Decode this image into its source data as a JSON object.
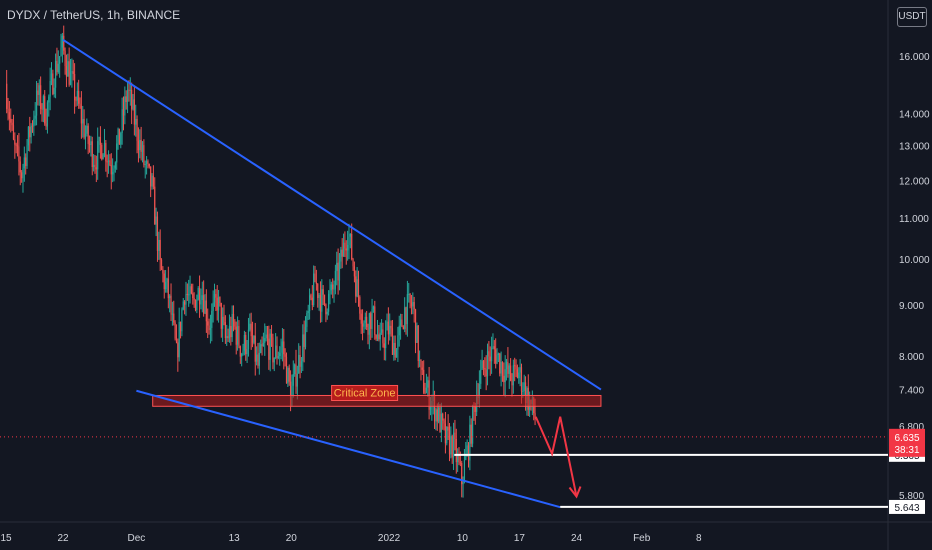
{
  "header": {
    "title": "DYDX / TetherUS, 1h, BINANCE",
    "currency_button": "USDT"
  },
  "colors": {
    "background": "#131722",
    "up": "#26a69a",
    "down": "#ef5350",
    "trendline": "#2962ff",
    "zone_fill": "#b71c1c",
    "zone_border": "#ff5252",
    "zone_text": "#ffb74d",
    "arrow": "#f23645",
    "target_line": "#ffffff",
    "price_label_current": "#f23645"
  },
  "chart_data": {
    "type": "candlestick",
    "symbol": "DYDX / TetherUS",
    "interval": "1h",
    "exchange": "BINANCE",
    "y_scale": "log",
    "ylim": [
      5.45,
      18.2
    ],
    "y_ticks": [
      "16.000",
      "14.000",
      "13.000",
      "12.000",
      "11.000",
      "10.000",
      "9.000",
      "8.000",
      "7.400",
      "6.800",
      "5.800"
    ],
    "x_ticks": [
      "15",
      "22",
      "Dec",
      "13",
      "20",
      "2022",
      "10",
      "17",
      "24",
      "Feb",
      "8"
    ],
    "price_path": [
      [
        "2021-11-15",
        15.0
      ],
      [
        "2021-11-16",
        13.0
      ],
      [
        "2021-11-17",
        12.2
      ],
      [
        "2021-11-18",
        13.4
      ],
      [
        "2021-11-19",
        14.6
      ],
      [
        "2021-11-20",
        14.0
      ],
      [
        "2021-11-21",
        15.4
      ],
      [
        "2021-11-22",
        16.3
      ],
      [
        "2021-11-23",
        15.2
      ],
      [
        "2021-11-24",
        14.2
      ],
      [
        "2021-11-25",
        13.2
      ],
      [
        "2021-11-26",
        12.6
      ],
      [
        "2021-11-27",
        13.1
      ],
      [
        "2021-11-28",
        12.4
      ],
      [
        "2021-11-29",
        13.2
      ],
      [
        "2021-11-30",
        14.8
      ],
      [
        "2021-12-01",
        13.6
      ],
      [
        "2021-12-02",
        12.5
      ],
      [
        "2021-12-03",
        11.8
      ],
      [
        "2021-12-04",
        9.8
      ],
      [
        "2021-12-05",
        9.2
      ],
      [
        "2021-12-06",
        8.0
      ],
      [
        "2021-12-07",
        9.3
      ],
      [
        "2021-12-08",
        9.0
      ],
      [
        "2021-12-09",
        9.4
      ],
      [
        "2021-12-10",
        8.6
      ],
      [
        "2021-12-11",
        9.1
      ],
      [
        "2021-12-12",
        8.3
      ],
      [
        "2021-12-13",
        8.6
      ],
      [
        "2021-12-14",
        8.1
      ],
      [
        "2021-12-15",
        8.4
      ],
      [
        "2021-12-16",
        7.8
      ],
      [
        "2021-12-17",
        8.3
      ],
      [
        "2021-12-18",
        8.0
      ],
      [
        "2021-12-19",
        8.2
      ],
      [
        "2021-12-20",
        7.3
      ],
      [
        "2021-12-21",
        7.9
      ],
      [
        "2021-12-22",
        8.6
      ],
      [
        "2021-12-23",
        9.5
      ],
      [
        "2021-12-24",
        9.0
      ],
      [
        "2021-12-25",
        9.2
      ],
      [
        "2021-12-26",
        9.8
      ],
      [
        "2021-12-27",
        10.7
      ],
      [
        "2021-12-28",
        9.5
      ],
      [
        "2021-12-29",
        8.6
      ],
      [
        "2021-12-30",
        8.8
      ],
      [
        "2021-12-31",
        8.2
      ],
      [
        "2022-01-01",
        8.5
      ],
      [
        "2022-01-02",
        8.1
      ],
      [
        "2022-01-03",
        8.9
      ],
      [
        "2022-01-04",
        9.0
      ],
      [
        "2022-01-05",
        7.6
      ],
      [
        "2022-01-06",
        7.3
      ],
      [
        "2022-01-07",
        7.0
      ],
      [
        "2022-01-08",
        6.6
      ],
      [
        "2022-01-09",
        6.5
      ],
      [
        "2022-01-10",
        6.0
      ],
      [
        "2022-01-11",
        6.6
      ],
      [
        "2022-01-12",
        7.5
      ],
      [
        "2022-01-13",
        7.9
      ],
      [
        "2022-01-14",
        8.1
      ],
      [
        "2022-01-15",
        7.8
      ],
      [
        "2022-01-16",
        7.6
      ],
      [
        "2022-01-17",
        7.7
      ],
      [
        "2022-01-18",
        7.3
      ],
      [
        "2022-01-19",
        6.95
      ]
    ],
    "annotations": {
      "critical_zone": {
        "label": "Critical Zone",
        "from": "2021-12-03",
        "to": "2022-01-27",
        "low": 7.12,
        "high": 7.3
      },
      "upper_trendline": [
        [
          "2021-11-22",
          16.6
        ],
        [
          "2022-01-27",
          7.4
        ]
      ],
      "lower_trendline": [
        [
          "2021-12-01",
          7.38
        ],
        [
          "2022-01-22",
          5.64
        ]
      ],
      "target_1": {
        "from": "2022-01-09",
        "to": "2022-01-31",
        "value": 6.365,
        "label": "6.365"
      },
      "target_2": {
        "from": "2022-01-22",
        "to": "2022-01-31",
        "value": 5.643,
        "label": "5.643"
      },
      "projected_path": [
        [
          "2022-01-19",
          6.95
        ],
        [
          "2022-01-21",
          6.38
        ],
        [
          "2022-01-22",
          6.95
        ],
        [
          "2022-01-24",
          5.78
        ]
      ],
      "current_price": {
        "label": "6.635",
        "countdown": "38:31",
        "value": 6.635
      }
    }
  }
}
